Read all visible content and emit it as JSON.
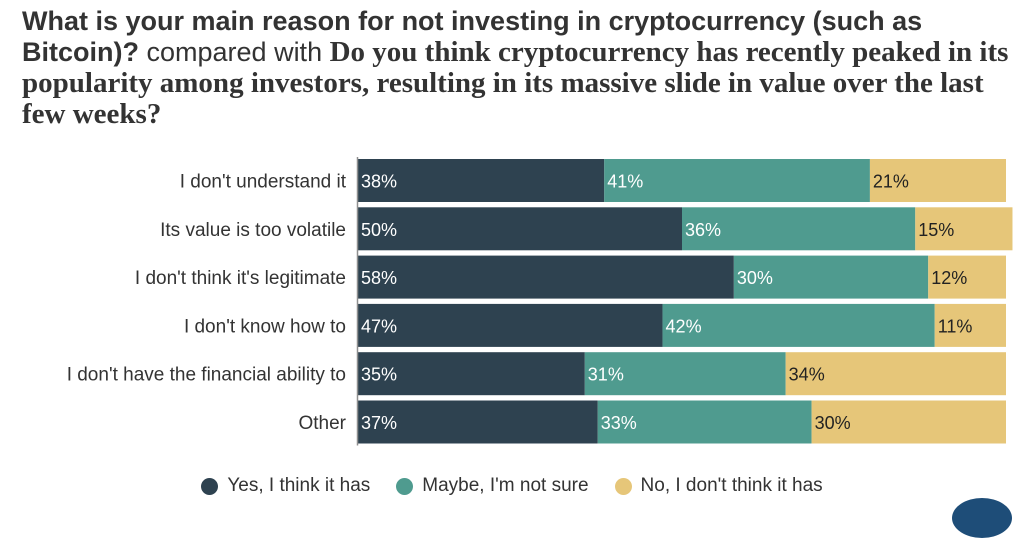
{
  "title": {
    "question_1": "What is your main reason for not investing in cryptocurrency (such as Bitcoin)?",
    "joiner": "compared with",
    "question_2": "Do you think cryptocurrency has recently peaked in its popularity among investors, resulting in its massive slide in value over the last few weeks?"
  },
  "chart_data": {
    "type": "bar",
    "orientation": "horizontal",
    "stacked": true,
    "normalized_percent": true,
    "categories": [
      "I don't understand it",
      "Its value is too volatile",
      "I don't think it's legitimate",
      "I don't know how to",
      "I don't have the financial ability to",
      "Other"
    ],
    "series": [
      {
        "name": "Yes, I think it has",
        "color": "#2e4250",
        "text_color": "#ffffff",
        "values": [
          38,
          50,
          58,
          47,
          35,
          37
        ]
      },
      {
        "name": "Maybe, I'm not sure",
        "color": "#4f9b8f",
        "text_color": "#ffffff",
        "values": [
          41,
          36,
          30,
          42,
          31,
          33
        ]
      },
      {
        "name": "No, I don't think it has",
        "color": "#e6c679",
        "text_color": "#222222",
        "values": [
          21,
          15,
          12,
          11,
          34,
          30
        ]
      }
    ],
    "value_suffix": "%",
    "xlim": [
      0,
      100
    ],
    "legend_position": "bottom",
    "grid": false
  }
}
